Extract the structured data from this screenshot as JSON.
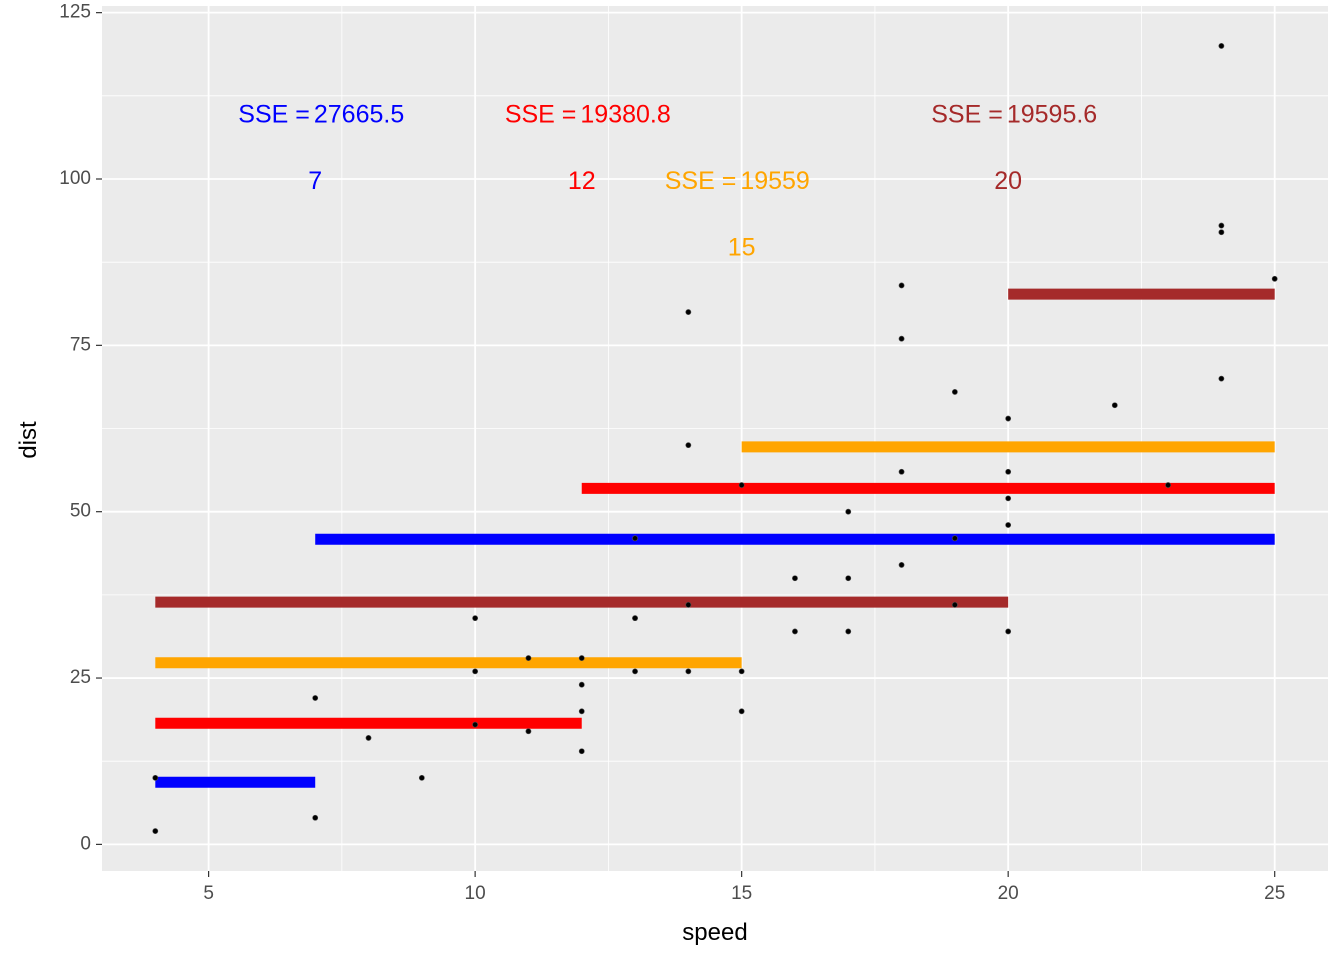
{
  "chart_data": {
    "type": "scatter",
    "title": "",
    "xlabel": "speed",
    "ylabel": "dist",
    "xlim": [
      3,
      26
    ],
    "ylim": [
      -4,
      126
    ],
    "xticks": [
      5,
      10,
      15,
      20,
      25
    ],
    "yticks": [
      0,
      25,
      50,
      75,
      100,
      125
    ],
    "xtick_labels": [
      "5",
      "10",
      "15",
      "20",
      "25"
    ],
    "ytick_labels": [
      "0",
      "25",
      "50",
      "75",
      "100",
      "125"
    ],
    "grid": true,
    "legend": "none",
    "points": [
      [
        4,
        2
      ],
      [
        4,
        10
      ],
      [
        7,
        4
      ],
      [
        7,
        22
      ],
      [
        8,
        16
      ],
      [
        9,
        10
      ],
      [
        10,
        18
      ],
      [
        10,
        26
      ],
      [
        10,
        34
      ],
      [
        11,
        17
      ],
      [
        11,
        28
      ],
      [
        12,
        14
      ],
      [
        12,
        20
      ],
      [
        12,
        24
      ],
      [
        12,
        28
      ],
      [
        13,
        26
      ],
      [
        13,
        34
      ],
      [
        13,
        34
      ],
      [
        13,
        46
      ],
      [
        14,
        26
      ],
      [
        14,
        36
      ],
      [
        14,
        60
      ],
      [
        14,
        80
      ],
      [
        15,
        20
      ],
      [
        15,
        26
      ],
      [
        15,
        54
      ],
      [
        16,
        32
      ],
      [
        16,
        40
      ],
      [
        17,
        32
      ],
      [
        17,
        40
      ],
      [
        17,
        50
      ],
      [
        18,
        42
      ],
      [
        18,
        56
      ],
      [
        18,
        76
      ],
      [
        18,
        84
      ],
      [
        19,
        36
      ],
      [
        19,
        46
      ],
      [
        19,
        68
      ],
      [
        20,
        32
      ],
      [
        20,
        48
      ],
      [
        20,
        52
      ],
      [
        20,
        56
      ],
      [
        20,
        64
      ],
      [
        22,
        66
      ],
      [
        23,
        54
      ],
      [
        24,
        70
      ],
      [
        24,
        92
      ],
      [
        24,
        93
      ],
      [
        24,
        120
      ],
      [
        25,
        85
      ]
    ],
    "steps": [
      {
        "split": 7,
        "split_label": "7",
        "sse_label": "SSE = ",
        "sse_value": "27665.5",
        "color": "#0000ff",
        "segments": [
          {
            "x": [
              4,
              7
            ],
            "y": 9.33
          },
          {
            "x": [
              7,
              25
            ],
            "y": 45.85
          }
        ],
        "sse_pos": [
          6.9,
          109.5
        ],
        "split_label_pos": [
          7,
          99.5
        ]
      },
      {
        "split": 12,
        "split_label": "12",
        "sse_label": "SSE = ",
        "sse_value": "19380.8",
        "color": "#ff0000",
        "segments": [
          {
            "x": [
              4,
              12
            ],
            "y": 18.2
          },
          {
            "x": [
              12,
              25
            ],
            "y": 53.5
          }
        ],
        "sse_pos": [
          11.9,
          109.5
        ],
        "split_label_pos": [
          12,
          99.5
        ]
      },
      {
        "split": 15,
        "split_label": "15",
        "sse_label": "SSE = ",
        "sse_value": "19559",
        "color": "#ffa500",
        "segments": [
          {
            "x": [
              4,
              15
            ],
            "y": 27.3
          },
          {
            "x": [
              15,
              25
            ],
            "y": 59.75
          }
        ],
        "sse_pos": [
          14.9,
          99.5
        ],
        "split_label_pos": [
          15,
          89.5
        ]
      },
      {
        "split": 20,
        "split_label": "20",
        "sse_label": "SSE = ",
        "sse_value": "19595.6",
        "color": "#a52a2a",
        "segments": [
          {
            "x": [
              4,
              20
            ],
            "y": 36.4
          },
          {
            "x": [
              20,
              25
            ],
            "y": 82.7
          }
        ],
        "sse_pos": [
          19.9,
          109.5
        ],
        "split_label_pos": [
          20,
          99.5
        ]
      }
    ]
  }
}
